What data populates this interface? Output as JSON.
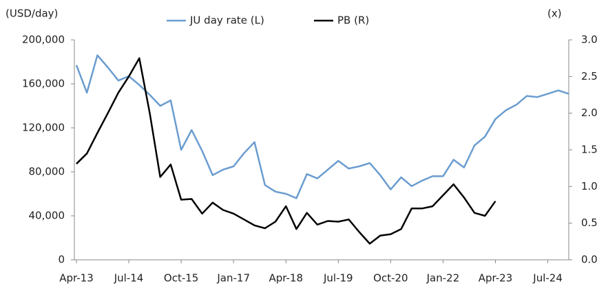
{
  "chart_data": {
    "type": "line",
    "y_label": "(USD/day)",
    "y2_label": "(x)",
    "x": [
      "Apr-13",
      "Jul-13",
      "Oct-13",
      "Jan-14",
      "Apr-14",
      "Jul-14",
      "Oct-14",
      "Jan-15",
      "Apr-15",
      "Jul-15",
      "Oct-15",
      "Jan-16",
      "Apr-16",
      "Jul-16",
      "Oct-16",
      "Jan-17",
      "Apr-17",
      "Jul-17",
      "Oct-17",
      "Jan-18",
      "Apr-18",
      "Jul-18",
      "Oct-18",
      "Jan-19",
      "Apr-19",
      "Jul-19",
      "Oct-19",
      "Jan-20",
      "Apr-20",
      "Jul-20",
      "Oct-20",
      "Jan-21",
      "Apr-21",
      "Jul-21",
      "Oct-21",
      "Jan-22",
      "Apr-22",
      "Jul-22",
      "Oct-22",
      "Jan-23",
      "Apr-23",
      "Jul-23",
      "Oct-23",
      "Jan-24",
      "Apr-24",
      "Jul-24",
      "Oct-24",
      "Jan-25"
    ],
    "xticks": [
      "Apr-13",
      "Jul-14",
      "Oct-15",
      "Jan-17",
      "Apr-18",
      "Jul-19",
      "Oct-20",
      "Jan-22",
      "Apr-23",
      "Jul-24"
    ],
    "series": [
      {
        "name": "JU day rate (L)",
        "color": "#6a9ccf",
        "axis": "y",
        "values": [
          177000,
          152000,
          186000,
          175000,
          163000,
          167000,
          159000,
          150000,
          140000,
          145000,
          100000,
          118000,
          99000,
          77000,
          82000,
          85000,
          97000,
          107000,
          68000,
          62000,
          60000,
          56000,
          78000,
          74000,
          82000,
          90000,
          83000,
          85000,
          88000,
          77000,
          64000,
          75000,
          67000,
          72000,
          76000,
          76000,
          91000,
          84000,
          104000,
          112000,
          128000,
          136000,
          141000,
          149000,
          148000,
          151000,
          154000,
          151000
        ]
      },
      {
        "name": "PB (R)",
        "color": "#000000",
        "axis": "y2",
        "values": [
          1.31,
          1.45,
          1.73,
          2.0,
          2.28,
          2.5,
          2.75,
          2.0,
          1.13,
          1.3,
          0.82,
          0.83,
          0.63,
          0.78,
          0.68,
          0.63,
          0.55,
          0.47,
          0.43,
          0.52,
          0.73,
          0.42,
          0.64,
          0.48,
          0.53,
          0.52,
          0.55,
          0.38,
          0.22,
          0.33,
          0.35,
          0.42,
          0.7,
          0.7,
          0.73,
          0.88,
          1.03,
          0.85,
          0.64,
          0.6,
          0.8,
          null,
          null,
          null,
          null,
          null,
          null,
          null
        ]
      }
    ],
    "ylim": [
      0,
      200000
    ],
    "yticks": [
      0,
      {
        "value": 40000,
        "label": "40,000"
      },
      {
        "value": 80000,
        "label": "80,000"
      },
      {
        "value": 120000,
        "label": "120,000"
      },
      {
        "value": 160000,
        "label": "160,000"
      },
      {
        "value": 200000,
        "label": "200,000"
      }
    ],
    "y2lim": [
      0,
      3
    ],
    "y2ticks": [
      {
        "value": 0,
        "label": "0.0"
      },
      0.5,
      {
        "value": 1,
        "label": "1.0"
      },
      1.5,
      {
        "value": 2,
        "label": "2.0"
      },
      2.5,
      {
        "value": 3,
        "label": "3.0"
      }
    ],
    "legend": "top"
  }
}
